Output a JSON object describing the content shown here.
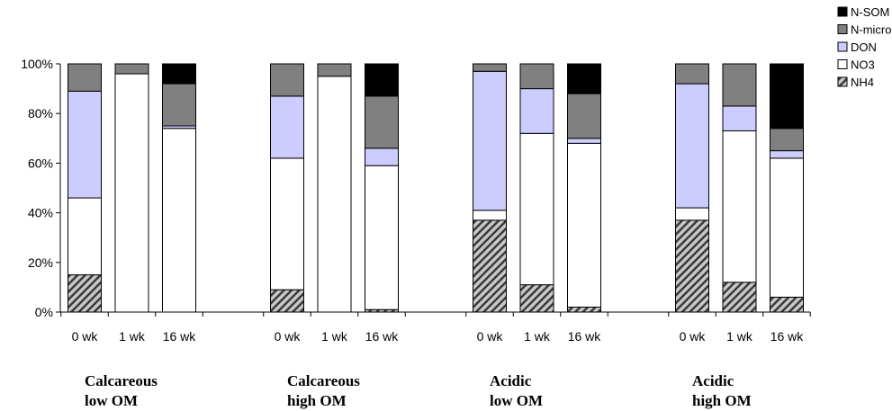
{
  "chart_data": {
    "type": "bar",
    "stacked": true,
    "normalized": true,
    "title": "",
    "xlabel": "",
    "ylabel": "",
    "ylim": [
      0,
      100
    ],
    "y_ticks": [
      "0%",
      "20%",
      "40%",
      "60%",
      "80%",
      "100%"
    ],
    "grid": false,
    "legend_position": "top-right",
    "legend_order": [
      "N-SOM",
      "N-micro",
      "DON",
      "NO3",
      "NH4"
    ],
    "categories": [
      "0 wk",
      "1 wk",
      "16 wk"
    ],
    "groups": [
      {
        "label_lines": [
          "Calcareous",
          "low OM"
        ],
        "bars": [
          {
            "time": "0 wk",
            "NH4": 15,
            "NO3": 31,
            "DON": 43,
            "N-micro": 11,
            "N-SOM": 0
          },
          {
            "time": "1 wk",
            "NH4": 0,
            "NO3": 96,
            "DON": 0,
            "N-micro": 4,
            "N-SOM": 0
          },
          {
            "time": "16 wk",
            "NH4": 0,
            "NO3": 74,
            "DON": 1,
            "N-micro": 17,
            "N-SOM": 8
          }
        ]
      },
      {
        "label_lines": [
          "Calcareous",
          "high OM"
        ],
        "bars": [
          {
            "time": "0 wk",
            "NH4": 9,
            "NO3": 53,
            "DON": 25,
            "N-micro": 13,
            "N-SOM": 0
          },
          {
            "time": "1 wk",
            "NH4": 0,
            "NO3": 95,
            "DON": 0,
            "N-micro": 5,
            "N-SOM": 0
          },
          {
            "time": "16 wk",
            "NH4": 1,
            "NO3": 58,
            "DON": 7,
            "N-micro": 21,
            "N-SOM": 13
          }
        ]
      },
      {
        "label_lines": [
          "Acidic",
          "low OM"
        ],
        "bars": [
          {
            "time": "0 wk",
            "NH4": 37,
            "NO3": 4,
            "DON": 56,
            "N-micro": 3,
            "N-SOM": 0
          },
          {
            "time": "1 wk",
            "NH4": 11,
            "NO3": 61,
            "DON": 18,
            "N-micro": 10,
            "N-SOM": 0
          },
          {
            "time": "16 wk",
            "NH4": 2,
            "NO3": 66,
            "DON": 2,
            "N-micro": 18,
            "N-SOM": 12
          }
        ]
      },
      {
        "label_lines": [
          "Acidic",
          "high OM"
        ],
        "bars": [
          {
            "time": "0 wk",
            "NH4": 37,
            "NO3": 5,
            "DON": 50,
            "N-micro": 8,
            "N-SOM": 0
          },
          {
            "time": "1 wk",
            "NH4": 12,
            "NO3": 61,
            "DON": 10,
            "N-micro": 17,
            "N-SOM": 0
          },
          {
            "time": "16 wk",
            "NH4": 6,
            "NO3": 56,
            "DON": 3,
            "N-micro": 9,
            "N-SOM": 26
          }
        ]
      }
    ],
    "series": [
      {
        "name": "N-SOM",
        "color": "#000000",
        "pattern": "solid"
      },
      {
        "name": "N-micro",
        "color": "#808080",
        "pattern": "solid"
      },
      {
        "name": "DON",
        "color": "#ccccff",
        "pattern": "solid"
      },
      {
        "name": "NO3",
        "color": "#ffffff",
        "pattern": "solid"
      },
      {
        "name": "NH4",
        "color": "#c0c0c0",
        "pattern": "diagonal-hatch"
      }
    ]
  }
}
